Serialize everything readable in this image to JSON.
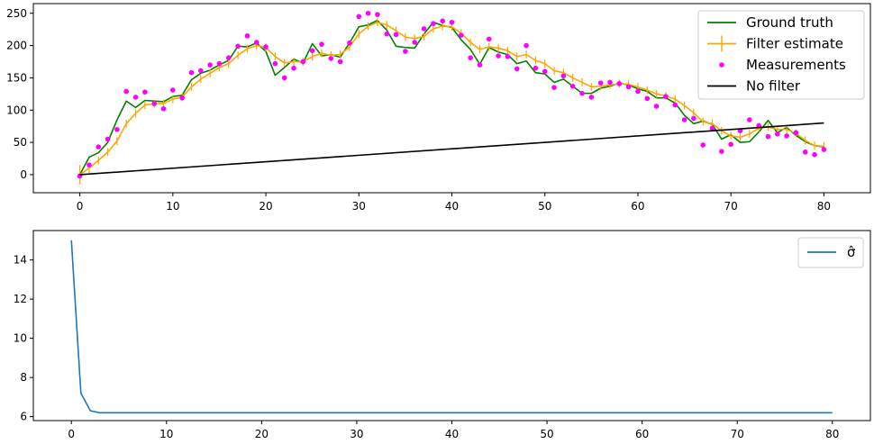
{
  "chart_data": [
    {
      "type": "line",
      "xlim": [
        -5,
        85
      ],
      "ylim": [
        -28,
        265
      ],
      "xticks": [
        0,
        10,
        20,
        30,
        40,
        50,
        60,
        70,
        80
      ],
      "yticks": [
        0,
        50,
        100,
        150,
        200,
        250
      ],
      "legend_position": "top-right",
      "grid": false,
      "series": [
        {
          "name": "Ground truth",
          "style": "line",
          "color": "#008000",
          "values": [
            0,
            27,
            34,
            50,
            85,
            114,
            104,
            115,
            114,
            113,
            121,
            123,
            147,
            157,
            162,
            170,
            177,
            199,
            198,
            204,
            191,
            154,
            166,
            179,
            173,
            203,
            184,
            186,
            182,
            204,
            229,
            232,
            239,
            224,
            199,
            197,
            196,
            218,
            236,
            231,
            228,
            209,
            194,
            171,
            197,
            190,
            186,
            172,
            176,
            158,
            156,
            143,
            148,
            137,
            126,
            126,
            134,
            137,
            142,
            139,
            133,
            129,
            119,
            119,
            111,
            92,
            79,
            83,
            78,
            55,
            62,
            50,
            51,
            66,
            84,
            65,
            73,
            61,
            51,
            45,
            43
          ]
        },
        {
          "name": "Filter estimate",
          "style": "line-errorbar",
          "color": "#ffa500",
          "values": [
            0,
            10,
            22,
            35,
            52,
            79,
            95,
            108,
            110,
            110,
            117,
            120,
            136,
            148,
            157,
            166,
            172,
            185,
            195,
            200,
            197,
            183,
            173,
            175,
            175,
            183,
            188,
            185,
            186,
            198,
            218,
            230,
            236,
            232,
            223,
            213,
            211,
            214,
            226,
            230,
            229,
            219,
            205,
            194,
            198,
            196,
            192,
            183,
            186,
            177,
            172,
            161,
            158,
            150,
            143,
            136,
            137,
            139,
            141,
            140,
            136,
            131,
            125,
            122,
            117,
            107,
            96,
            82,
            79,
            68,
            60,
            58,
            63,
            72,
            74,
            70,
            70,
            64,
            53,
            45,
            44
          ],
          "errors": [
            15,
            7.2,
            6.3,
            6.2,
            6.2,
            6.2,
            6.2,
            6.2,
            6.2,
            6.2,
            6.2,
            6.2,
            6.2,
            6.2,
            6.2,
            6.2,
            6.2,
            6.2,
            6.2,
            6.2,
            6.2,
            6.2,
            6.2,
            6.2,
            6.2,
            6.2,
            6.2,
            6.2,
            6.2,
            6.2,
            6.2,
            6.2,
            6.2,
            6.2,
            6.2,
            6.2,
            6.2,
            6.2,
            6.2,
            6.2,
            6.2,
            6.2,
            6.2,
            6.2,
            6.2,
            6.2,
            6.2,
            6.2,
            6.2,
            6.2,
            6.2,
            6.2,
            6.2,
            6.2,
            6.2,
            6.2,
            6.2,
            6.2,
            6.2,
            6.2,
            6.2,
            6.2,
            6.2,
            6.2,
            6.2,
            6.2,
            6.2,
            6.2,
            6.2,
            6.2,
            6.2,
            6.2,
            6.2,
            6.2,
            6.2,
            6.2,
            6.2,
            6.2,
            6.2,
            6.2,
            6.2
          ]
        },
        {
          "name": "Measurements",
          "style": "scatter",
          "color": "#ff00ff",
          "values": [
            -2,
            15,
            43,
            55,
            70,
            129,
            120,
            128,
            110,
            102,
            131,
            119,
            158,
            161,
            170,
            172,
            181,
            199,
            215,
            205,
            198,
            172,
            150,
            165,
            175,
            192,
            202,
            180,
            175,
            204,
            245,
            250,
            248,
            218,
            217,
            191,
            205,
            226,
            234,
            238,
            236,
            216,
            181,
            170,
            210,
            184,
            183,
            164,
            200,
            165,
            160,
            135,
            153,
            137,
            126,
            120,
            142,
            143,
            141,
            136,
            129,
            118,
            106,
            121,
            108,
            85,
            87,
            46,
            72,
            36,
            47,
            68,
            85,
            76,
            59,
            63,
            60,
            65,
            35,
            31,
            39
          ]
        },
        {
          "name": "No filter",
          "style": "line",
          "color": "#000000",
          "x": [
            0,
            80
          ],
          "values": [
            0,
            80
          ]
        }
      ]
    },
    {
      "type": "line",
      "xlim": [
        -4,
        84
      ],
      "ylim": [
        5.8,
        15.5
      ],
      "xticks": [
        0,
        10,
        20,
        30,
        40,
        50,
        60,
        70,
        80
      ],
      "yticks": [
        6,
        8,
        10,
        12,
        14
      ],
      "legend_position": "top-right",
      "grid": false,
      "series": [
        {
          "name": "σ̂",
          "style": "line",
          "color": "#1f77b4",
          "values": [
            15,
            7.2,
            6.3,
            6.2,
            6.2,
            6.2,
            6.2,
            6.2,
            6.2,
            6.2,
            6.2,
            6.2,
            6.2,
            6.2,
            6.2,
            6.2,
            6.2,
            6.2,
            6.2,
            6.2,
            6.2,
            6.2,
            6.2,
            6.2,
            6.2,
            6.2,
            6.2,
            6.2,
            6.2,
            6.2,
            6.2,
            6.2,
            6.2,
            6.2,
            6.2,
            6.2,
            6.2,
            6.2,
            6.2,
            6.2,
            6.2,
            6.2,
            6.2,
            6.2,
            6.2,
            6.2,
            6.2,
            6.2,
            6.2,
            6.2,
            6.2,
            6.2,
            6.2,
            6.2,
            6.2,
            6.2,
            6.2,
            6.2,
            6.2,
            6.2,
            6.2,
            6.2,
            6.2,
            6.2,
            6.2,
            6.2,
            6.2,
            6.2,
            6.2,
            6.2,
            6.2,
            6.2,
            6.2,
            6.2,
            6.2,
            6.2,
            6.2,
            6.2,
            6.2,
            6.2,
            6.2
          ]
        }
      ]
    }
  ]
}
